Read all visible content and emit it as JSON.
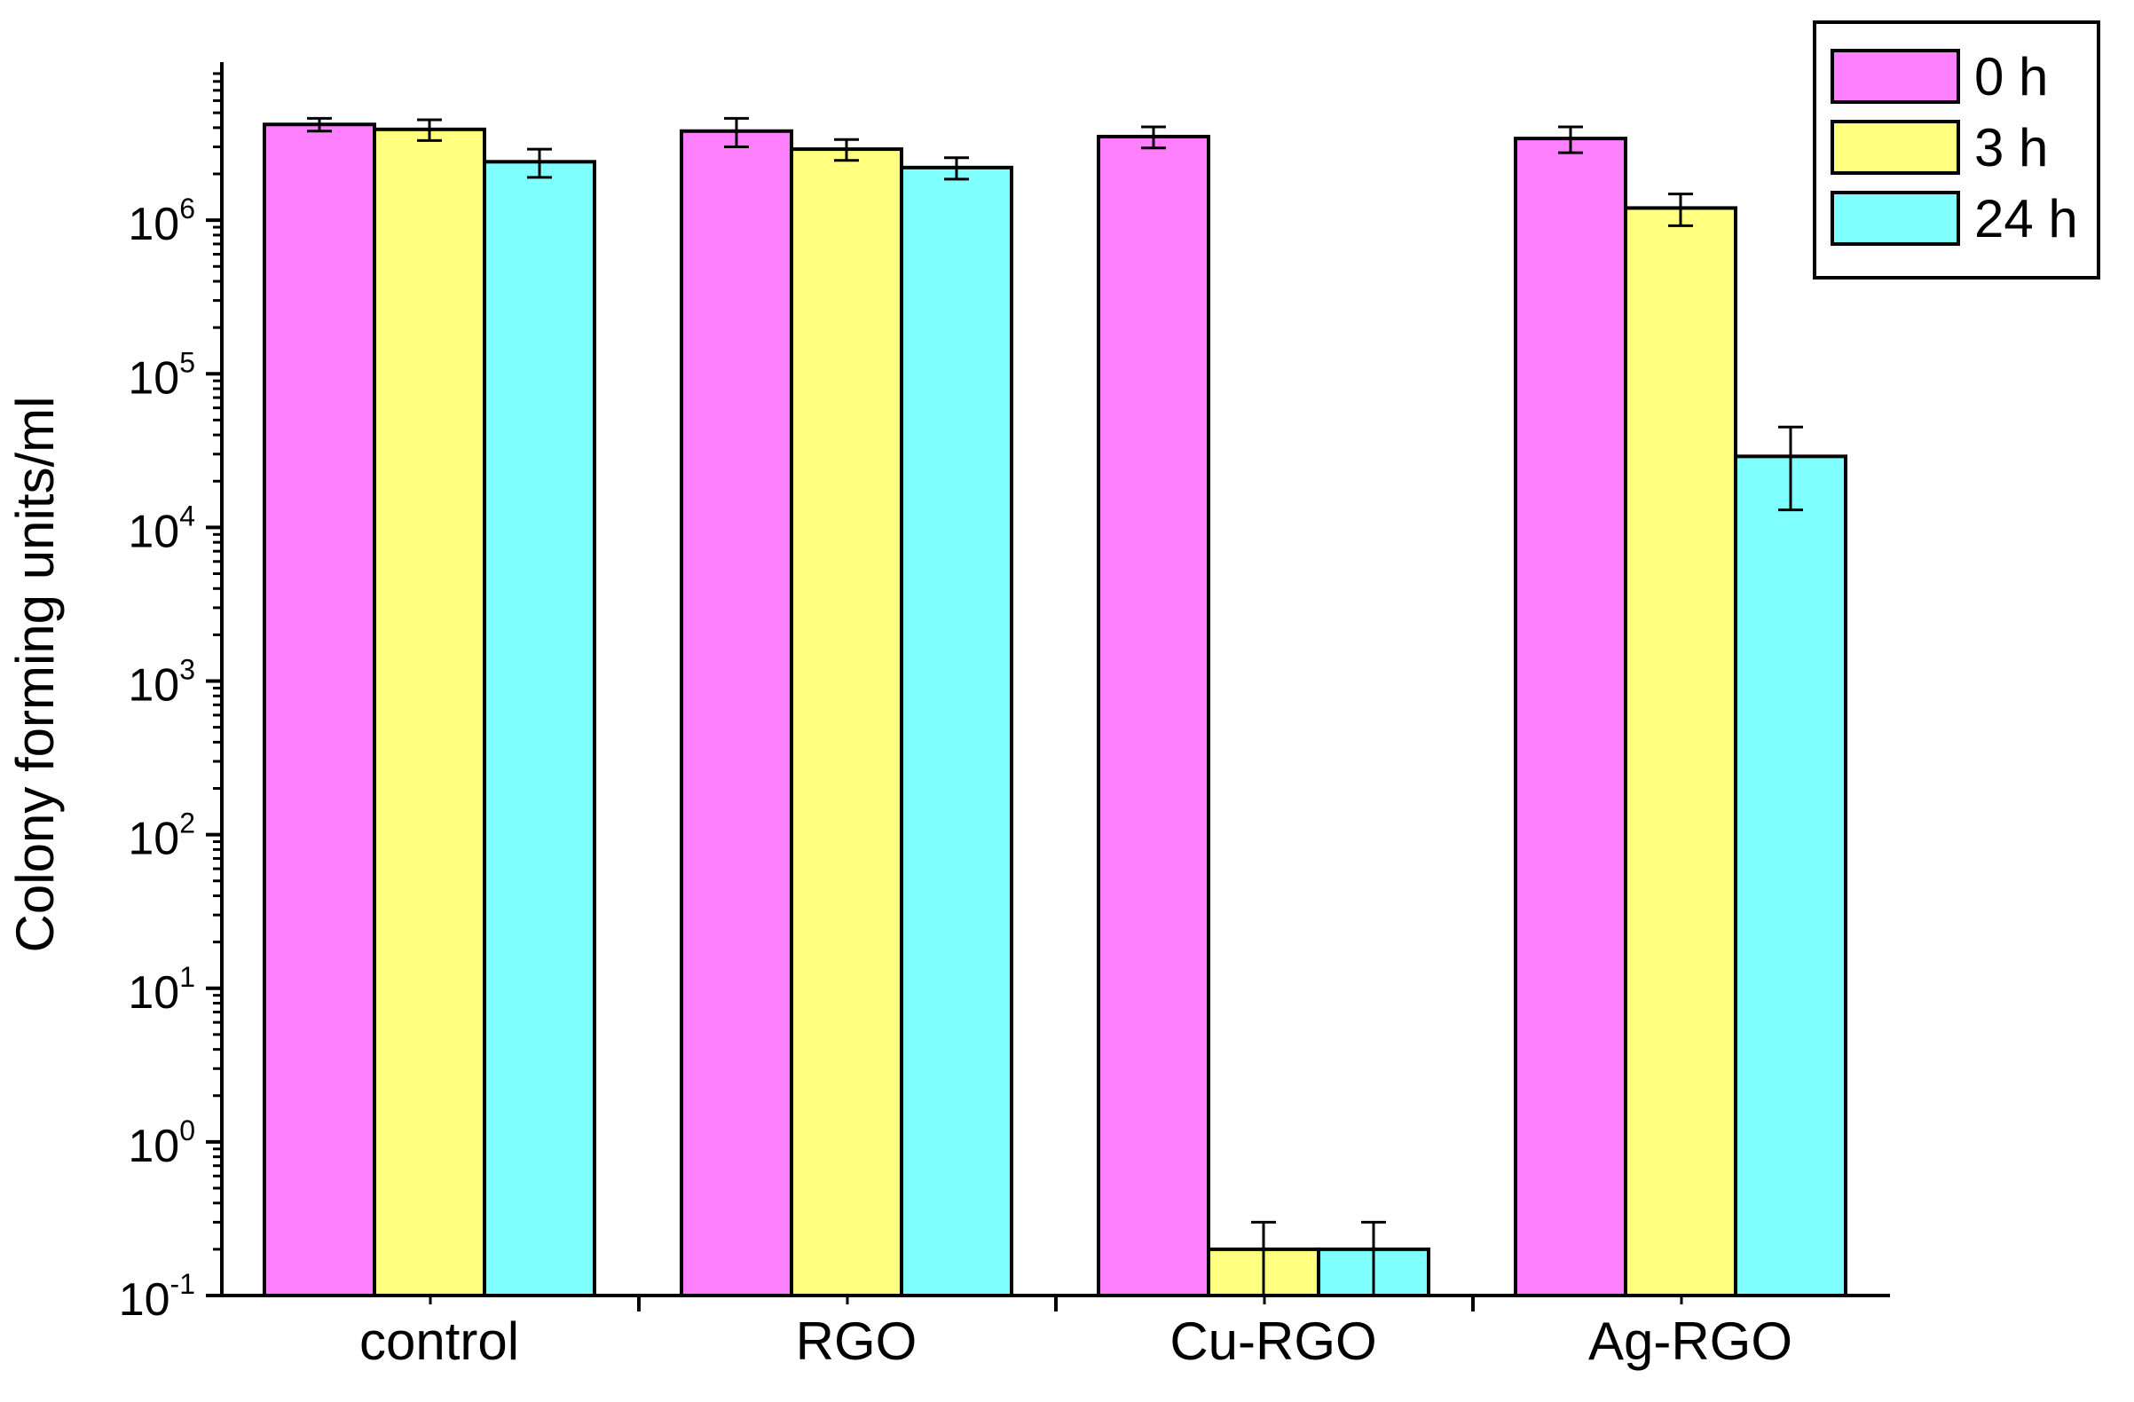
{
  "chart_data": {
    "type": "bar",
    "scale": "log",
    "title": "",
    "xlabel": "",
    "ylabel": "Colony forming units/ml",
    "ylim": [
      0.1,
      10000000
    ],
    "categories": [
      "control",
      "RGO",
      "Cu-RGO",
      "Ag-RGO"
    ],
    "yticks": [
      {
        "base": "10",
        "exp": "-1"
      },
      {
        "base": "10",
        "exp": "0"
      },
      {
        "base": "10",
        "exp": "1"
      },
      {
        "base": "10",
        "exp": "2"
      },
      {
        "base": "10",
        "exp": "3"
      },
      {
        "base": "10",
        "exp": "4"
      },
      {
        "base": "10",
        "exp": "5"
      },
      {
        "base": "10",
        "exp": "6"
      }
    ],
    "series": [
      {
        "name": "0 h",
        "color": "#FF80FF",
        "values": [
          4200000,
          3800000,
          null,
          3400000
        ],
        "errors": [
          400000,
          800000,
          550000,
          650000
        ]
      },
      {
        "name": "3 h",
        "color": "#FFFF80",
        "values": [
          3900000,
          2900000,
          0.2,
          1200000
        ],
        "errors": [
          600000,
          450000,
          0.1,
          280000
        ]
      },
      {
        "name": "24 h",
        "color": "#80FFFF",
        "values": [
          2400000,
          2200000,
          0.2,
          29000
        ],
        "errors": [
          500000,
          350000,
          0.1,
          16000
        ]
      }
    ],
    "cu_rgo_0h": 3500000,
    "legend_position": "top-right"
  }
}
